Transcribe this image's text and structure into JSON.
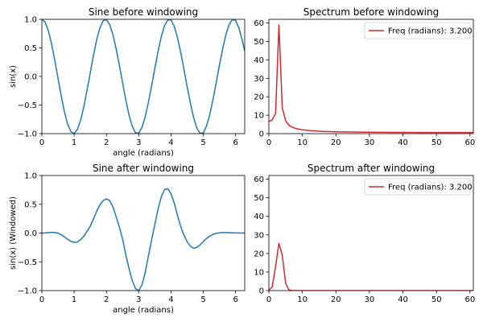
{
  "colors": {
    "sine": "#1f77b4",
    "spectrum": "#d62728"
  },
  "chart_data": [
    {
      "type": "line",
      "title": "Sine before windowing",
      "xlabel": "angle (radians)",
      "ylabel": "sin(x)",
      "xlim": [
        0,
        6.2832
      ],
      "ylim": [
        -1.0,
        1.0
      ],
      "xticks": [
        0,
        1,
        2,
        3,
        4,
        5,
        6
      ],
      "xtick_labels": [
        "0",
        "1",
        "2",
        "3",
        "4",
        "5",
        "6"
      ],
      "yticks": [
        -1.0,
        -0.5,
        0.0,
        0.5,
        1.0
      ],
      "ytick_labels": [
        "−1.0",
        "−0.5",
        "0.0",
        "0.5",
        "1.0"
      ],
      "grid": false,
      "series": [
        {
          "color": "#1f77b4",
          "x": [
            0,
            0.1,
            0.2,
            0.3,
            0.4,
            0.5,
            0.6,
            0.7,
            0.8,
            0.9,
            1,
            1.1,
            1.2,
            1.3,
            1.4,
            1.5,
            1.6,
            1.7,
            1.8,
            1.9,
            2,
            2.1,
            2.2,
            2.3,
            2.4,
            2.5,
            2.6,
            2.7,
            2.8,
            2.9,
            3,
            3.1,
            3.2,
            3.3,
            3.4,
            3.5,
            3.6,
            3.7,
            3.8,
            3.9,
            4,
            4.1,
            4.2,
            4.3,
            4.4,
            4.5,
            4.6,
            4.7,
            4.8,
            4.9,
            5,
            5.1,
            5.2,
            5.3,
            5.4,
            5.5,
            5.6,
            5.7,
            5.8,
            5.9,
            6,
            6.1,
            6.2,
            6.28
          ],
          "y": [
            1.0,
            0.95,
            0.802,
            0.572,
            0.284,
            -0.03,
            -0.342,
            -0.62,
            -0.835,
            -0.966,
            -0.998,
            -0.928,
            -0.765,
            -0.527,
            -0.24,
            0.069,
            0.376,
            0.649,
            0.855,
            0.976,
            0.996,
            0.909,
            0.734,
            0.487,
            0.199,
            -0.11,
            -0.411,
            -0.676,
            -0.874,
            -0.984,
            -0.993,
            -0.894,
            -0.708,
            -0.454,
            -0.164,
            0.146,
            0.441,
            0.699,
            0.89,
            0.99,
            0.99,
            0.877,
            0.682,
            0.422,
            0.13,
            -0.18,
            -0.467,
            -0.719,
            -0.903,
            -0.993,
            -0.987,
            -0.866,
            -0.668,
            -0.403,
            -0.109,
            0.199,
            0.484,
            0.731,
            0.91,
            0.995,
            0.983,
            0.853,
            0.649,
            0.45
          ]
        }
      ]
    },
    {
      "type": "line",
      "title": "Spectrum before windowing",
      "xlabel": "",
      "ylabel": "",
      "xlim": [
        0,
        61
      ],
      "ylim": [
        0,
        62
      ],
      "xticks": [
        0,
        10,
        20,
        30,
        40,
        50,
        60
      ],
      "xtick_labels": [
        "0",
        "10",
        "20",
        "30",
        "40",
        "50",
        "60"
      ],
      "yticks": [
        0,
        10,
        20,
        30,
        40,
        50,
        60
      ],
      "ytick_labels": [
        "0",
        "10",
        "20",
        "30",
        "40",
        "50",
        "60"
      ],
      "grid": false,
      "legend": {
        "placement": "top-right",
        "entries": [
          "Freq (radians): 3.200"
        ]
      },
      "series": [
        {
          "name": "Freq (radians): 3.200",
          "color": "#d62728",
          "x": [
            0,
            1,
            2,
            3,
            4,
            5,
            6,
            7,
            8,
            9,
            10,
            12,
            14,
            16,
            18,
            20,
            25,
            30,
            35,
            40,
            45,
            50,
            55,
            61
          ],
          "y": [
            6.5,
            7.5,
            11,
            59,
            14,
            7,
            4.5,
            3.5,
            2.8,
            2.4,
            2.1,
            1.7,
            1.4,
            1.2,
            1.1,
            1.0,
            0.85,
            0.75,
            0.7,
            0.65,
            0.6,
            0.6,
            0.6,
            0.6
          ]
        }
      ]
    },
    {
      "type": "line",
      "title": "Sine after windowing",
      "xlabel": "angle (radians)",
      "ylabel": "sin(x) (Windowed)",
      "xlim": [
        0,
        6.2832
      ],
      "ylim": [
        -1.0,
        1.0
      ],
      "xticks": [
        0,
        1,
        2,
        3,
        4,
        5,
        6
      ],
      "xtick_labels": [
        "0",
        "1",
        "2",
        "3",
        "4",
        "5",
        "6"
      ],
      "yticks": [
        -1.0,
        -0.5,
        0.0,
        0.5,
        1.0
      ],
      "ytick_labels": [
        "−1.0",
        "−0.5",
        "0.0",
        "0.5",
        "1.0"
      ],
      "grid": false,
      "series": [
        {
          "color": "#1f77b4",
          "x": [
            0,
            0.1,
            0.2,
            0.3,
            0.4,
            0.5,
            0.6,
            0.7,
            0.8,
            0.9,
            1,
            1.1,
            1.2,
            1.3,
            1.4,
            1.5,
            1.6,
            1.7,
            1.8,
            1.9,
            2,
            2.1,
            2.2,
            2.3,
            2.4,
            2.5,
            2.6,
            2.7,
            2.8,
            2.9,
            3,
            3.1,
            3.2,
            3.3,
            3.4,
            3.5,
            3.6,
            3.7,
            3.8,
            3.9,
            4,
            4.1,
            4.2,
            4.3,
            4.4,
            4.5,
            4.6,
            4.7,
            4.8,
            4.9,
            5,
            5.1,
            5.2,
            5.3,
            5.4,
            5.5,
            5.6,
            5.7,
            5.8,
            5.9,
            6,
            6.1,
            6.2,
            6.28
          ],
          "y": [
            0.0,
            0.002,
            0.008,
            0.013,
            0.011,
            -0.002,
            -0.029,
            -0.067,
            -0.109,
            -0.145,
            -0.163,
            -0.154,
            -0.116,
            -0.052,
            0.029,
            0.122,
            0.247,
            0.381,
            0.493,
            0.566,
            0.594,
            0.565,
            0.458,
            0.284,
            0.106,
            -0.1,
            -0.378,
            -0.62,
            -0.825,
            -0.966,
            -1.0,
            -0.9,
            -0.69,
            -0.4,
            -0.115,
            0.15,
            0.421,
            0.63,
            0.757,
            0.77,
            0.682,
            0.522,
            0.307,
            0.116,
            -0.035,
            -0.15,
            -0.228,
            -0.265,
            -0.25,
            -0.205,
            -0.148,
            -0.094,
            -0.053,
            -0.023,
            -0.005,
            0.004,
            0.008,
            0.008,
            0.006,
            0.004,
            0.002,
            0.001,
            0.0,
            0.0
          ]
        }
      ]
    },
    {
      "type": "line",
      "title": "Spectrum after windowing",
      "xlabel": "",
      "ylabel": "",
      "xlim": [
        0,
        61
      ],
      "ylim": [
        0,
        62
      ],
      "xticks": [
        0,
        10,
        20,
        30,
        40,
        50,
        60
      ],
      "xtick_labels": [
        "0",
        "10",
        "20",
        "30",
        "40",
        "50",
        "60"
      ],
      "yticks": [
        0,
        10,
        20,
        30,
        40,
        50,
        60
      ],
      "ytick_labels": [
        "0",
        "10",
        "20",
        "30",
        "40",
        "50",
        "60"
      ],
      "grid": false,
      "legend": {
        "placement": "top-right",
        "entries": [
          "Freq (radians): 3.200"
        ]
      },
      "series": [
        {
          "name": "Freq (radians): 3.200",
          "color": "#d62728",
          "x": [
            0,
            1,
            2,
            3,
            4,
            5,
            6,
            7,
            8,
            10,
            20,
            30,
            40,
            50,
            61
          ],
          "y": [
            0.3,
            2,
            13,
            25.5,
            19,
            4,
            0.3,
            0.05,
            0,
            0,
            0,
            0,
            0,
            0,
            0
          ]
        }
      ]
    }
  ]
}
